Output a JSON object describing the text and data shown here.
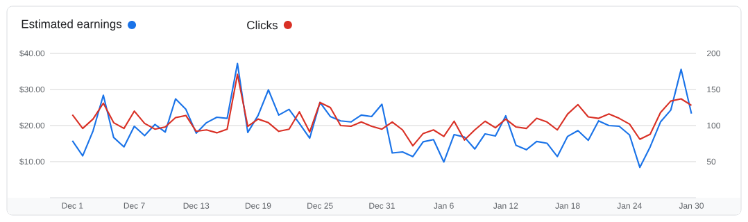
{
  "chart_data": {
    "type": "line",
    "categories": [
      "Dec 1",
      null,
      null,
      null,
      null,
      null,
      "Dec 7",
      null,
      null,
      null,
      null,
      null,
      "Dec 13",
      null,
      null,
      null,
      null,
      null,
      "Dec 19",
      null,
      null,
      null,
      null,
      null,
      "Dec 25",
      null,
      null,
      null,
      null,
      null,
      "Dec 31",
      null,
      null,
      null,
      null,
      null,
      "Jan 6",
      null,
      null,
      null,
      null,
      null,
      "Jan 12",
      null,
      null,
      null,
      null,
      null,
      "Jan 18",
      null,
      null,
      null,
      null,
      null,
      "Jan 24",
      null,
      null,
      null,
      null,
      null,
      "Jan 30"
    ],
    "series": [
      {
        "name": "Estimated earnings",
        "color": "#1a73e8",
        "values": [
          15.8,
          11.6,
          18.5,
          28.4,
          16.7,
          14.1,
          19.8,
          17.2,
          20.3,
          18.2,
          27.4,
          24.5,
          17.9,
          20.8,
          22.3,
          22.0,
          37.2,
          18.1,
          22.8,
          29.9,
          22.9,
          24.5,
          20.6,
          16.5,
          26.4,
          22.5,
          21.3,
          21.0,
          22.9,
          22.5,
          25.9,
          12.4,
          12.7,
          11.4,
          15.5,
          16.1,
          9.9,
          17.5,
          16.8,
          13.5,
          17.7,
          17.1,
          22.7,
          14.5,
          13.3,
          15.6,
          15.1,
          11.4,
          17.0,
          18.6,
          15.9,
          21.3,
          20.0,
          19.8,
          17.4,
          8.4,
          14.1,
          21.0,
          24.3,
          35.6,
          23.3
        ]
      },
      {
        "name": "Clicks",
        "color": "#d93025",
        "axis": "y2",
        "values": [
          115,
          96,
          109,
          131,
          104,
          96,
          120,
          103,
          95,
          98,
          111,
          114,
          92,
          94,
          90,
          95,
          171,
          99,
          109,
          104,
          92,
          95,
          119,
          91,
          132,
          125,
          100,
          99,
          105,
          99,
          95,
          105,
          94,
          72,
          89,
          94,
          85,
          106,
          80,
          94,
          106,
          97,
          109,
          98,
          96,
          110,
          105,
          94,
          116,
          129,
          112,
          110,
          116,
          110,
          102,
          81,
          88,
          118,
          134,
          137,
          128
        ]
      }
    ],
    "ylim": [
      0,
      40
    ],
    "yticks": [
      {
        "value": 10,
        "label": "$10.00"
      },
      {
        "value": 20,
        "label": "$20.00"
      },
      {
        "value": 30,
        "label": "$30.00"
      },
      {
        "value": 40,
        "label": "$40.00"
      }
    ],
    "y2lim": [
      0,
      200
    ],
    "y2ticks": [
      50,
      100,
      150,
      200
    ],
    "grid": "y",
    "legend": "top left"
  }
}
